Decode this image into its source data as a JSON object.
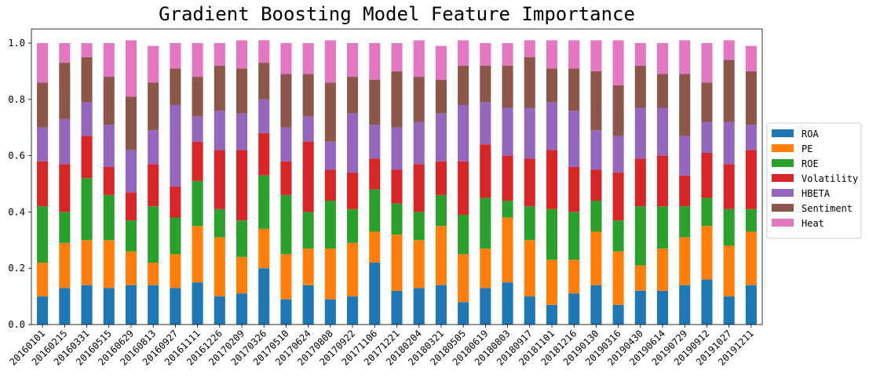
{
  "chart_data": {
    "type": "bar",
    "stacked": true,
    "title": "Gradient Boosting Model Feature Importance",
    "xlabel": "",
    "ylabel": "",
    "ylim": [
      0,
      1.05
    ],
    "yticks": [
      "0.0",
      "0.2",
      "0.4",
      "0.6",
      "0.8",
      "1.0"
    ],
    "grid": false,
    "legend_position": "right",
    "categories": [
      "20160101",
      "20160215",
      "20160331",
      "20160515",
      "20160629",
      "20160813",
      "20160927",
      "20161111",
      "20161226",
      "20170209",
      "20170326",
      "20170510",
      "20170624",
      "20170808",
      "20170922",
      "20171106",
      "20171221",
      "20180204",
      "20180321",
      "20180505",
      "20180619",
      "20180803",
      "20180917",
      "20181101",
      "20181216",
      "20190130",
      "20190316",
      "20190430",
      "20190614",
      "20190729",
      "20190912",
      "20191027",
      "20191211"
    ],
    "series": [
      {
        "name": "ROA",
        "color": "#1f77b4",
        "values": [
          0.1,
          0.13,
          0.14,
          0.13,
          0.14,
          0.14,
          0.13,
          0.15,
          0.1,
          0.11,
          0.2,
          0.09,
          0.14,
          0.09,
          0.1,
          0.22,
          0.12,
          0.13,
          0.14,
          0.08,
          0.13,
          0.15,
          0.1,
          0.07,
          0.11,
          0.14,
          0.07,
          0.12,
          0.12,
          0.14,
          0.16,
          0.1,
          0.14
        ]
      },
      {
        "name": "PE",
        "color": "#ff7f0e",
        "values": [
          0.12,
          0.16,
          0.16,
          0.17,
          0.12,
          0.08,
          0.12,
          0.2,
          0.21,
          0.13,
          0.14,
          0.16,
          0.13,
          0.18,
          0.19,
          0.11,
          0.2,
          0.17,
          0.21,
          0.17,
          0.14,
          0.23,
          0.2,
          0.16,
          0.12,
          0.19,
          0.19,
          0.09,
          0.15,
          0.17,
          0.19,
          0.18,
          0.19
        ]
      },
      {
        "name": "ROE",
        "color": "#2ca02c",
        "values": [
          0.2,
          0.11,
          0.22,
          0.16,
          0.11,
          0.2,
          0.13,
          0.16,
          0.1,
          0.13,
          0.19,
          0.21,
          0.13,
          0.17,
          0.12,
          0.15,
          0.11,
          0.1,
          0.11,
          0.14,
          0.18,
          0.06,
          0.12,
          0.18,
          0.17,
          0.11,
          0.11,
          0.21,
          0.15,
          0.11,
          0.1,
          0.13,
          0.08
        ]
      },
      {
        "name": "Volatility",
        "color": "#d62728",
        "values": [
          0.16,
          0.17,
          0.15,
          0.1,
          0.1,
          0.15,
          0.11,
          0.14,
          0.21,
          0.25,
          0.15,
          0.12,
          0.25,
          0.11,
          0.13,
          0.11,
          0.12,
          0.17,
          0.12,
          0.19,
          0.19,
          0.16,
          0.17,
          0.21,
          0.16,
          0.11,
          0.17,
          0.17,
          0.18,
          0.11,
          0.16,
          0.16,
          0.21
        ]
      },
      {
        "name": "HBETA",
        "color": "#9467bd",
        "values": [
          0.12,
          0.16,
          0.12,
          0.15,
          0.15,
          0.12,
          0.29,
          0.09,
          0.14,
          0.13,
          0.12,
          0.12,
          0.09,
          0.1,
          0.21,
          0.12,
          0.15,
          0.15,
          0.17,
          0.2,
          0.15,
          0.17,
          0.18,
          0.17,
          0.2,
          0.14,
          0.13,
          0.18,
          0.17,
          0.14,
          0.11,
          0.15,
          0.09
        ]
      },
      {
        "name": "Sentiment",
        "color": "#8c564b",
        "values": [
          0.16,
          0.2,
          0.16,
          0.17,
          0.19,
          0.17,
          0.13,
          0.14,
          0.16,
          0.16,
          0.13,
          0.19,
          0.15,
          0.21,
          0.13,
          0.16,
          0.2,
          0.16,
          0.12,
          0.14,
          0.13,
          0.15,
          0.18,
          0.12,
          0.15,
          0.21,
          0.18,
          0.15,
          0.12,
          0.22,
          0.14,
          0.22,
          0.19
        ]
      },
      {
        "name": "Heat",
        "color": "#e377c2",
        "values": [
          0.14,
          0.07,
          0.05,
          0.12,
          0.2,
          0.13,
          0.09,
          0.12,
          0.08,
          0.1,
          0.08,
          0.11,
          0.11,
          0.15,
          0.12,
          0.13,
          0.1,
          0.13,
          0.12,
          0.09,
          0.08,
          0.08,
          0.06,
          0.1,
          0.1,
          0.11,
          0.16,
          0.08,
          0.11,
          0.12,
          0.14,
          0.07,
          0.09
        ]
      }
    ]
  }
}
